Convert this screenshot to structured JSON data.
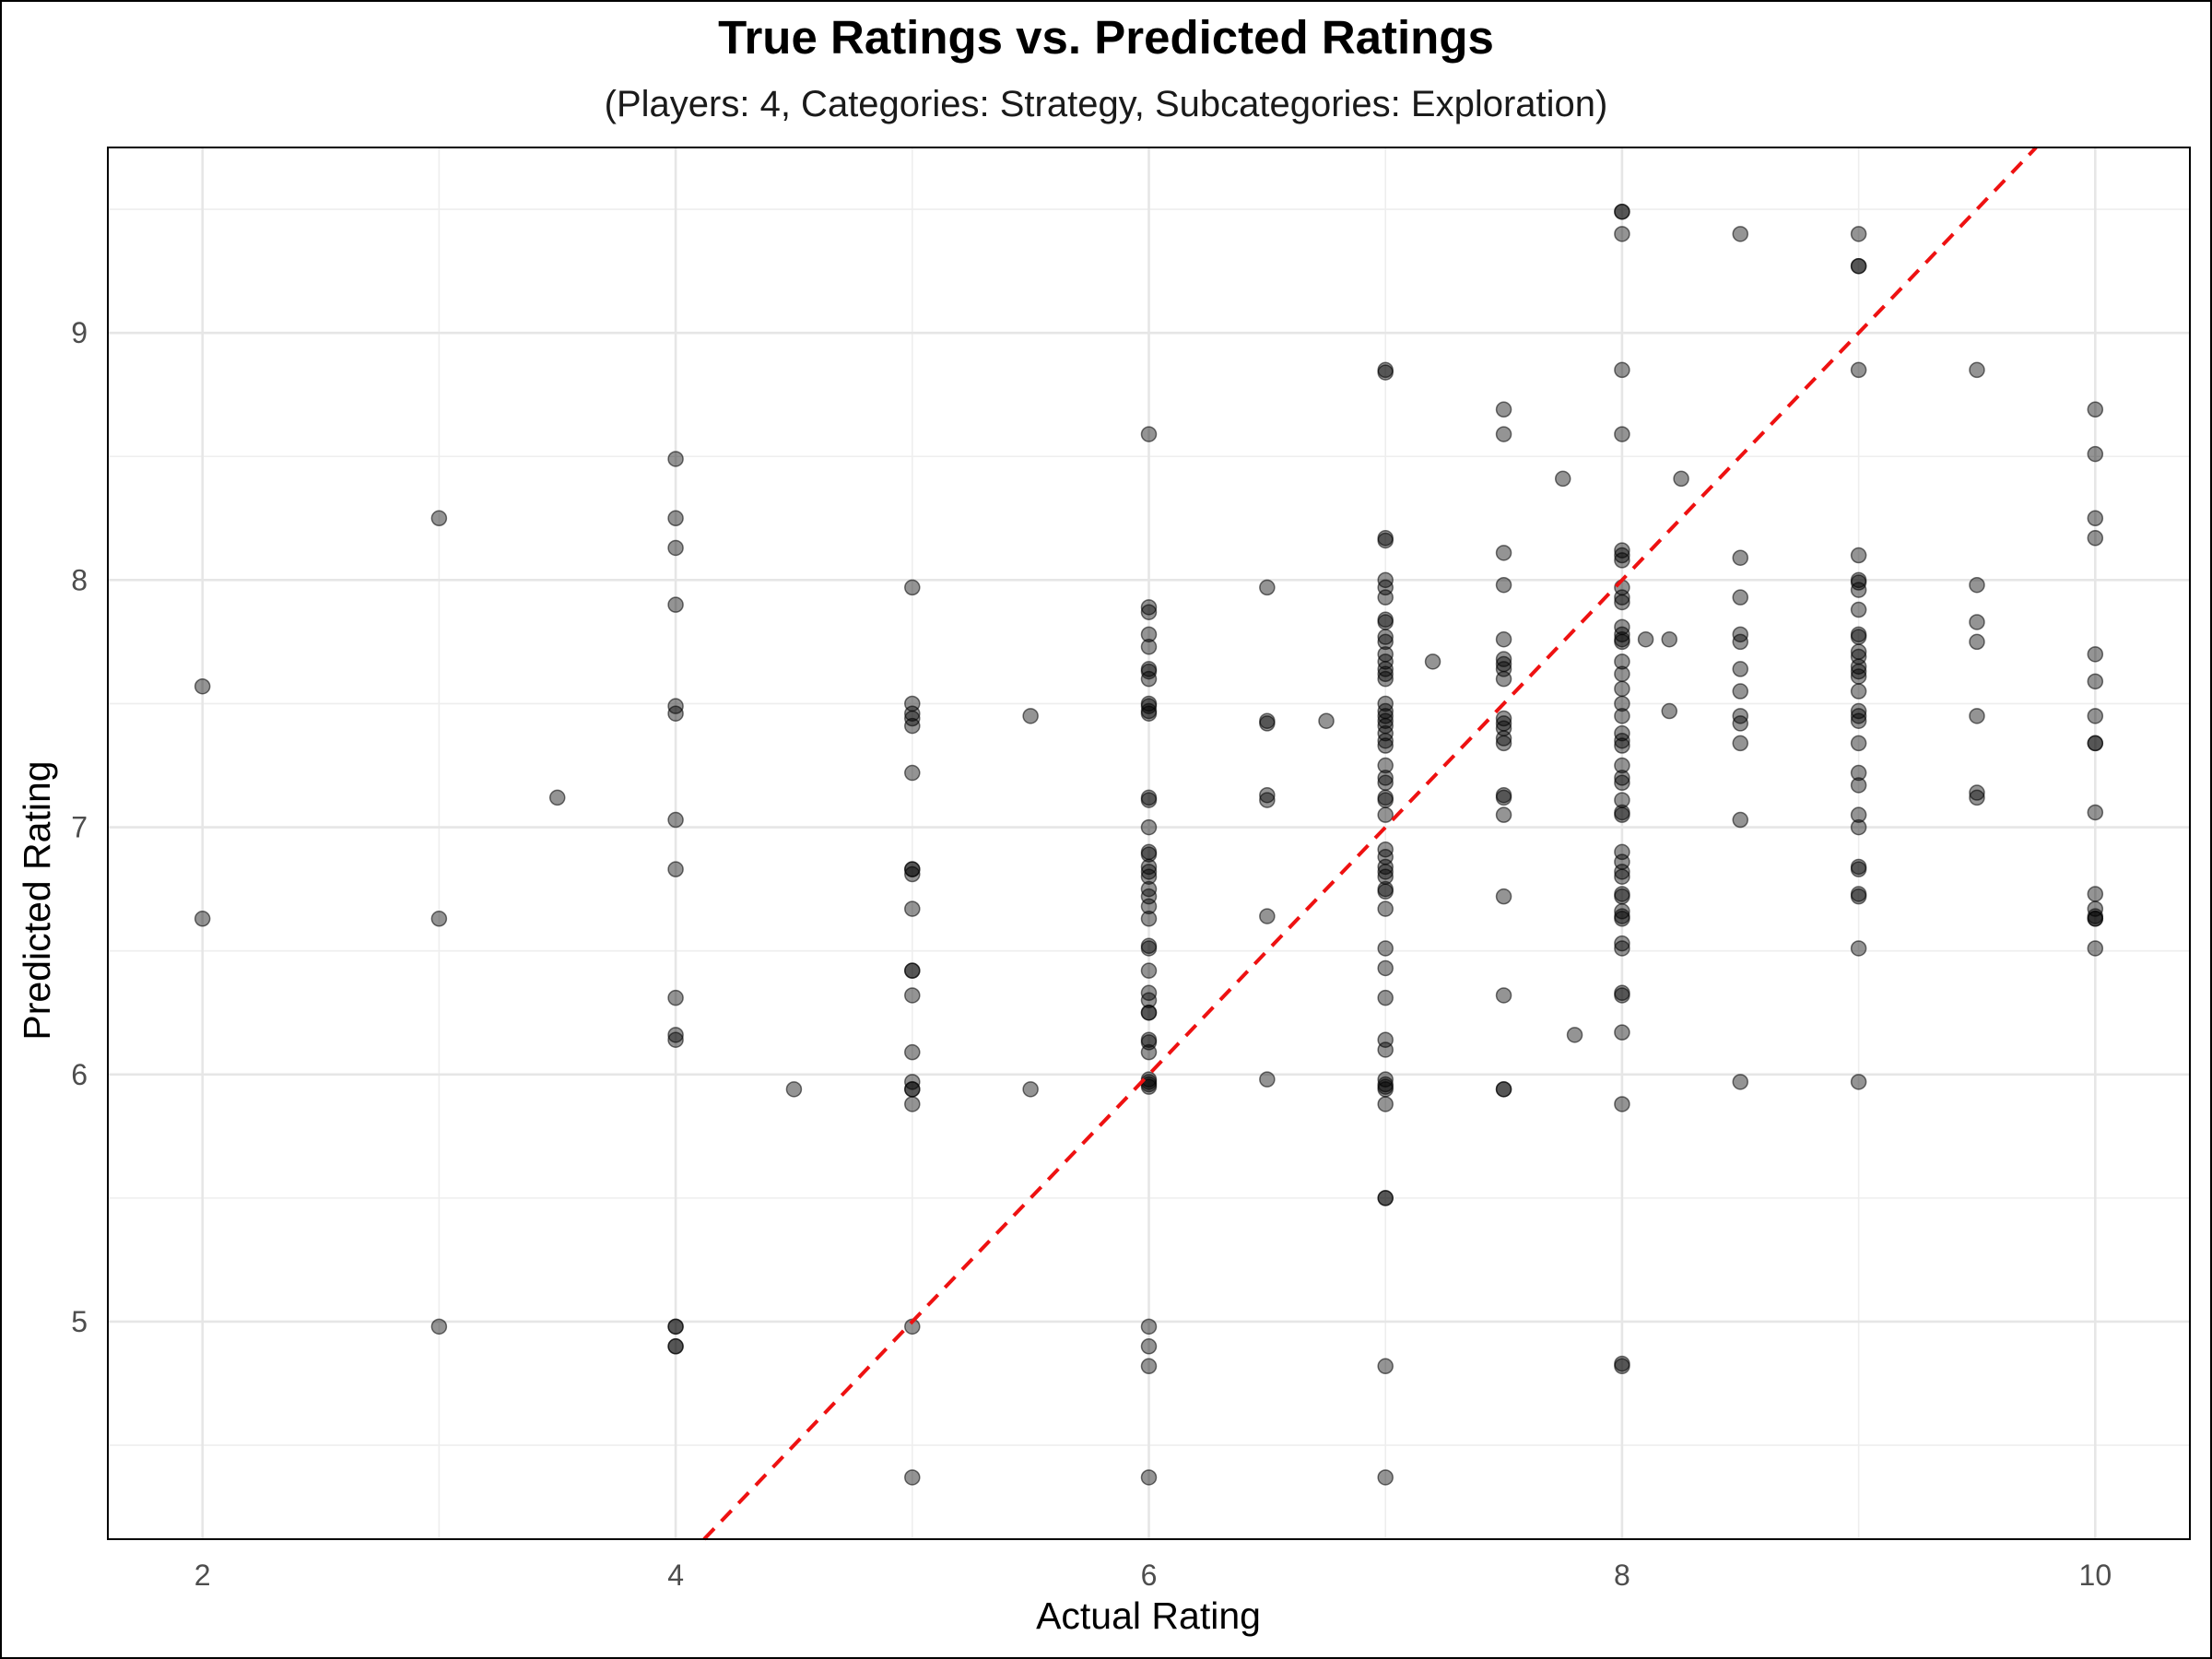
{
  "chart_data": {
    "type": "scatter",
    "title": "True Ratings vs. Predicted Ratings",
    "subtitle": "(Players: 4, Categories: Strategy, Subcategories: Exploration)",
    "xlabel": "Actual Rating",
    "ylabel": "Predicted Rating",
    "xlim": [
      1.6,
      10.4
    ],
    "ylim": [
      4.12,
      9.75
    ],
    "x_ticks": [
      2,
      4,
      6,
      8,
      10
    ],
    "y_ticks": [
      5,
      6,
      7,
      8,
      9
    ],
    "grid": true,
    "legend": "none",
    "reference_line": {
      "type": "identity",
      "slope": 1,
      "intercept": 0,
      "color": "#ee1111",
      "style": "dashed"
    },
    "point_color": "#000000",
    "point_alpha": 0.42,
    "points": [
      [
        2,
        7.57
      ],
      [
        2,
        6.63
      ],
      [
        3,
        8.25
      ],
      [
        3,
        6.63
      ],
      [
        3,
        4.98
      ],
      [
        3.5,
        7.12
      ],
      [
        4,
        8.49
      ],
      [
        4,
        8.25
      ],
      [
        4,
        8.13
      ],
      [
        4,
        7.9
      ],
      [
        4,
        7.49
      ],
      [
        4,
        7.46
      ],
      [
        4,
        7.03
      ],
      [
        4,
        6.83
      ],
      [
        4,
        6.31
      ],
      [
        4,
        6.16
      ],
      [
        4,
        6.14
      ],
      [
        4,
        4.98
      ],
      [
        4,
        4.98
      ],
      [
        4,
        4.9
      ],
      [
        4,
        4.9
      ],
      [
        4.5,
        5.94
      ],
      [
        5,
        7.97
      ],
      [
        5,
        7.5
      ],
      [
        5,
        7.46
      ],
      [
        5,
        7.44
      ],
      [
        5,
        7.41
      ],
      [
        5,
        7.22
      ],
      [
        5,
        6.83
      ],
      [
        5,
        6.83
      ],
      [
        5,
        6.81
      ],
      [
        5,
        6.67
      ],
      [
        5,
        6.42
      ],
      [
        5,
        6.42
      ],
      [
        5,
        6.32
      ],
      [
        5,
        6.09
      ],
      [
        5,
        5.97
      ],
      [
        5,
        5.94
      ],
      [
        5,
        5.94
      ],
      [
        5,
        5.88
      ],
      [
        5,
        4.98
      ],
      [
        5,
        4.37
      ],
      [
        5.5,
        7.45
      ],
      [
        5.5,
        5.94
      ],
      [
        6,
        8.59
      ],
      [
        6,
        7.89
      ],
      [
        6,
        7.87
      ],
      [
        6,
        7.78
      ],
      [
        6,
        7.73
      ],
      [
        6,
        7.64
      ],
      [
        6,
        7.63
      ],
      [
        6,
        7.6
      ],
      [
        6,
        7.5
      ],
      [
        6,
        7.49
      ],
      [
        6,
        7.47
      ],
      [
        6,
        7.46
      ],
      [
        6,
        7.12
      ],
      [
        6,
        7.11
      ],
      [
        6,
        7.0
      ],
      [
        6,
        6.9
      ],
      [
        6,
        6.89
      ],
      [
        6,
        6.84
      ],
      [
        6,
        6.82
      ],
      [
        6,
        6.8
      ],
      [
        6,
        6.75
      ],
      [
        6,
        6.72
      ],
      [
        6,
        6.68
      ],
      [
        6,
        6.63
      ],
      [
        6,
        6.52
      ],
      [
        6,
        6.51
      ],
      [
        6,
        6.42
      ],
      [
        6,
        6.33
      ],
      [
        6,
        6.3
      ],
      [
        6,
        6.25
      ],
      [
        6,
        6.25
      ],
      [
        6,
        6.14
      ],
      [
        6,
        6.13
      ],
      [
        6,
        6.09
      ],
      [
        6,
        5.98
      ],
      [
        6,
        5.97
      ],
      [
        6,
        5.96
      ],
      [
        6,
        5.95
      ],
      [
        6,
        4.98
      ],
      [
        6,
        4.9
      ],
      [
        6,
        4.82
      ],
      [
        6,
        4.37
      ],
      [
        6.5,
        7.97
      ],
      [
        6.5,
        7.43
      ],
      [
        6.5,
        7.42
      ],
      [
        6.5,
        7.13
      ],
      [
        6.5,
        7.11
      ],
      [
        6.5,
        6.64
      ],
      [
        6.5,
        5.98
      ],
      [
        6.75,
        7.43
      ],
      [
        7,
        8.85
      ],
      [
        7,
        8.84
      ],
      [
        7,
        8.17
      ],
      [
        7,
        8.16
      ],
      [
        7,
        8.0
      ],
      [
        7,
        7.97
      ],
      [
        7,
        7.93
      ],
      [
        7,
        7.84
      ],
      [
        7,
        7.83
      ],
      [
        7,
        7.77
      ],
      [
        7,
        7.75
      ],
      [
        7,
        7.7
      ],
      [
        7,
        7.67
      ],
      [
        7,
        7.64
      ],
      [
        7,
        7.62
      ],
      [
        7,
        7.6
      ],
      [
        7,
        7.5
      ],
      [
        7,
        7.47
      ],
      [
        7,
        7.45
      ],
      [
        7,
        7.43
      ],
      [
        7,
        7.41
      ],
      [
        7,
        7.38
      ],
      [
        7,
        7.35
      ],
      [
        7,
        7.33
      ],
      [
        7,
        7.25
      ],
      [
        7,
        7.2
      ],
      [
        7,
        7.18
      ],
      [
        7,
        7.12
      ],
      [
        7,
        7.11
      ],
      [
        7,
        7.05
      ],
      [
        7,
        6.91
      ],
      [
        7,
        6.88
      ],
      [
        7,
        6.84
      ],
      [
        7,
        6.82
      ],
      [
        7,
        6.8
      ],
      [
        7,
        6.75
      ],
      [
        7,
        6.74
      ],
      [
        7,
        6.67
      ],
      [
        7,
        6.51
      ],
      [
        7,
        6.43
      ],
      [
        7,
        6.31
      ],
      [
        7,
        6.14
      ],
      [
        7,
        6.1
      ],
      [
        7,
        5.98
      ],
      [
        7,
        5.96
      ],
      [
        7,
        5.95
      ],
      [
        7,
        5.94
      ],
      [
        7,
        5.88
      ],
      [
        7,
        5.5
      ],
      [
        7,
        5.5
      ],
      [
        7,
        4.82
      ],
      [
        7,
        4.37
      ],
      [
        7.2,
        7.67
      ],
      [
        7.5,
        8.69
      ],
      [
        7.5,
        8.59
      ],
      [
        7.5,
        8.11
      ],
      [
        7.5,
        7.98
      ],
      [
        7.5,
        7.76
      ],
      [
        7.5,
        7.68
      ],
      [
        7.5,
        7.66
      ],
      [
        7.5,
        7.64
      ],
      [
        7.5,
        7.6
      ],
      [
        7.5,
        7.44
      ],
      [
        7.5,
        7.42
      ],
      [
        7.5,
        7.4
      ],
      [
        7.5,
        7.36
      ],
      [
        7.5,
        7.34
      ],
      [
        7.5,
        7.13
      ],
      [
        7.5,
        7.12
      ],
      [
        7.5,
        7.05
      ],
      [
        7.5,
        6.72
      ],
      [
        7.5,
        6.32
      ],
      [
        7.5,
        5.94
      ],
      [
        7.5,
        5.94
      ],
      [
        7.75,
        8.41
      ],
      [
        7.8,
        6.16
      ],
      [
        8,
        9.49
      ],
      [
        8,
        9.49
      ],
      [
        8,
        9.4
      ],
      [
        8,
        8.85
      ],
      [
        8,
        8.59
      ],
      [
        8,
        8.12
      ],
      [
        8,
        8.1
      ],
      [
        8,
        8.08
      ],
      [
        8,
        7.97
      ],
      [
        8,
        7.93
      ],
      [
        8,
        7.91
      ],
      [
        8,
        7.81
      ],
      [
        8,
        7.78
      ],
      [
        8,
        7.76
      ],
      [
        8,
        7.75
      ],
      [
        8,
        7.67
      ],
      [
        8,
        7.62
      ],
      [
        8,
        7.56
      ],
      [
        8,
        7.5
      ],
      [
        8,
        7.45
      ],
      [
        8,
        7.38
      ],
      [
        8,
        7.35
      ],
      [
        8,
        7.33
      ],
      [
        8,
        7.25
      ],
      [
        8,
        7.2
      ],
      [
        8,
        7.18
      ],
      [
        8,
        7.11
      ],
      [
        8,
        7.06
      ],
      [
        8,
        7.05
      ],
      [
        8,
        6.9
      ],
      [
        8,
        6.86
      ],
      [
        8,
        6.82
      ],
      [
        8,
        6.8
      ],
      [
        8,
        6.73
      ],
      [
        8,
        6.72
      ],
      [
        8,
        6.66
      ],
      [
        8,
        6.64
      ],
      [
        8,
        6.63
      ],
      [
        8,
        6.53
      ],
      [
        8,
        6.51
      ],
      [
        8,
        6.33
      ],
      [
        8,
        6.32
      ],
      [
        8,
        6.17
      ],
      [
        8,
        5.88
      ],
      [
        8,
        4.83
      ],
      [
        8,
        4.82
      ],
      [
        8.1,
        7.76
      ],
      [
        8.2,
        7.76
      ],
      [
        8.2,
        7.47
      ],
      [
        8.25,
        8.41
      ],
      [
        8.5,
        9.4
      ],
      [
        8.5,
        8.09
      ],
      [
        8.5,
        7.93
      ],
      [
        8.5,
        7.78
      ],
      [
        8.5,
        7.75
      ],
      [
        8.5,
        7.64
      ],
      [
        8.5,
        7.55
      ],
      [
        8.5,
        7.45
      ],
      [
        8.5,
        7.42
      ],
      [
        8.5,
        7.34
      ],
      [
        8.5,
        7.03
      ],
      [
        8.5,
        5.97
      ],
      [
        9,
        9.4
      ],
      [
        9,
        9.27
      ],
      [
        9,
        9.27
      ],
      [
        9,
        8.85
      ],
      [
        9,
        8.1
      ],
      [
        9,
        8.0
      ],
      [
        9,
        7.99
      ],
      [
        9,
        7.96
      ],
      [
        9,
        7.88
      ],
      [
        9,
        7.78
      ],
      [
        9,
        7.77
      ],
      [
        9,
        7.71
      ],
      [
        9,
        7.69
      ],
      [
        9,
        7.65
      ],
      [
        9,
        7.63
      ],
      [
        9,
        7.61
      ],
      [
        9,
        7.55
      ],
      [
        9,
        7.47
      ],
      [
        9,
        7.45
      ],
      [
        9,
        7.43
      ],
      [
        9,
        7.34
      ],
      [
        9,
        7.22
      ],
      [
        9,
        7.17
      ],
      [
        9,
        7.05
      ],
      [
        9,
        7.0
      ],
      [
        9,
        6.84
      ],
      [
        9,
        6.83
      ],
      [
        9,
        6.73
      ],
      [
        9,
        6.72
      ],
      [
        9,
        6.51
      ],
      [
        9,
        5.97
      ],
      [
        9.5,
        8.85
      ],
      [
        9.5,
        7.98
      ],
      [
        9.5,
        7.83
      ],
      [
        9.5,
        7.75
      ],
      [
        9.5,
        7.45
      ],
      [
        9.5,
        7.14
      ],
      [
        9.5,
        7.12
      ],
      [
        10,
        8.69
      ],
      [
        10,
        8.51
      ],
      [
        10,
        8.25
      ],
      [
        10,
        8.17
      ],
      [
        10,
        7.7
      ],
      [
        10,
        7.59
      ],
      [
        10,
        7.45
      ],
      [
        10,
        7.34
      ],
      [
        10,
        7.34
      ],
      [
        10,
        7.06
      ],
      [
        10,
        6.73
      ],
      [
        10,
        6.67
      ],
      [
        10,
        6.64
      ],
      [
        10,
        6.63
      ],
      [
        10,
        6.63
      ],
      [
        10,
        6.51
      ]
    ]
  }
}
